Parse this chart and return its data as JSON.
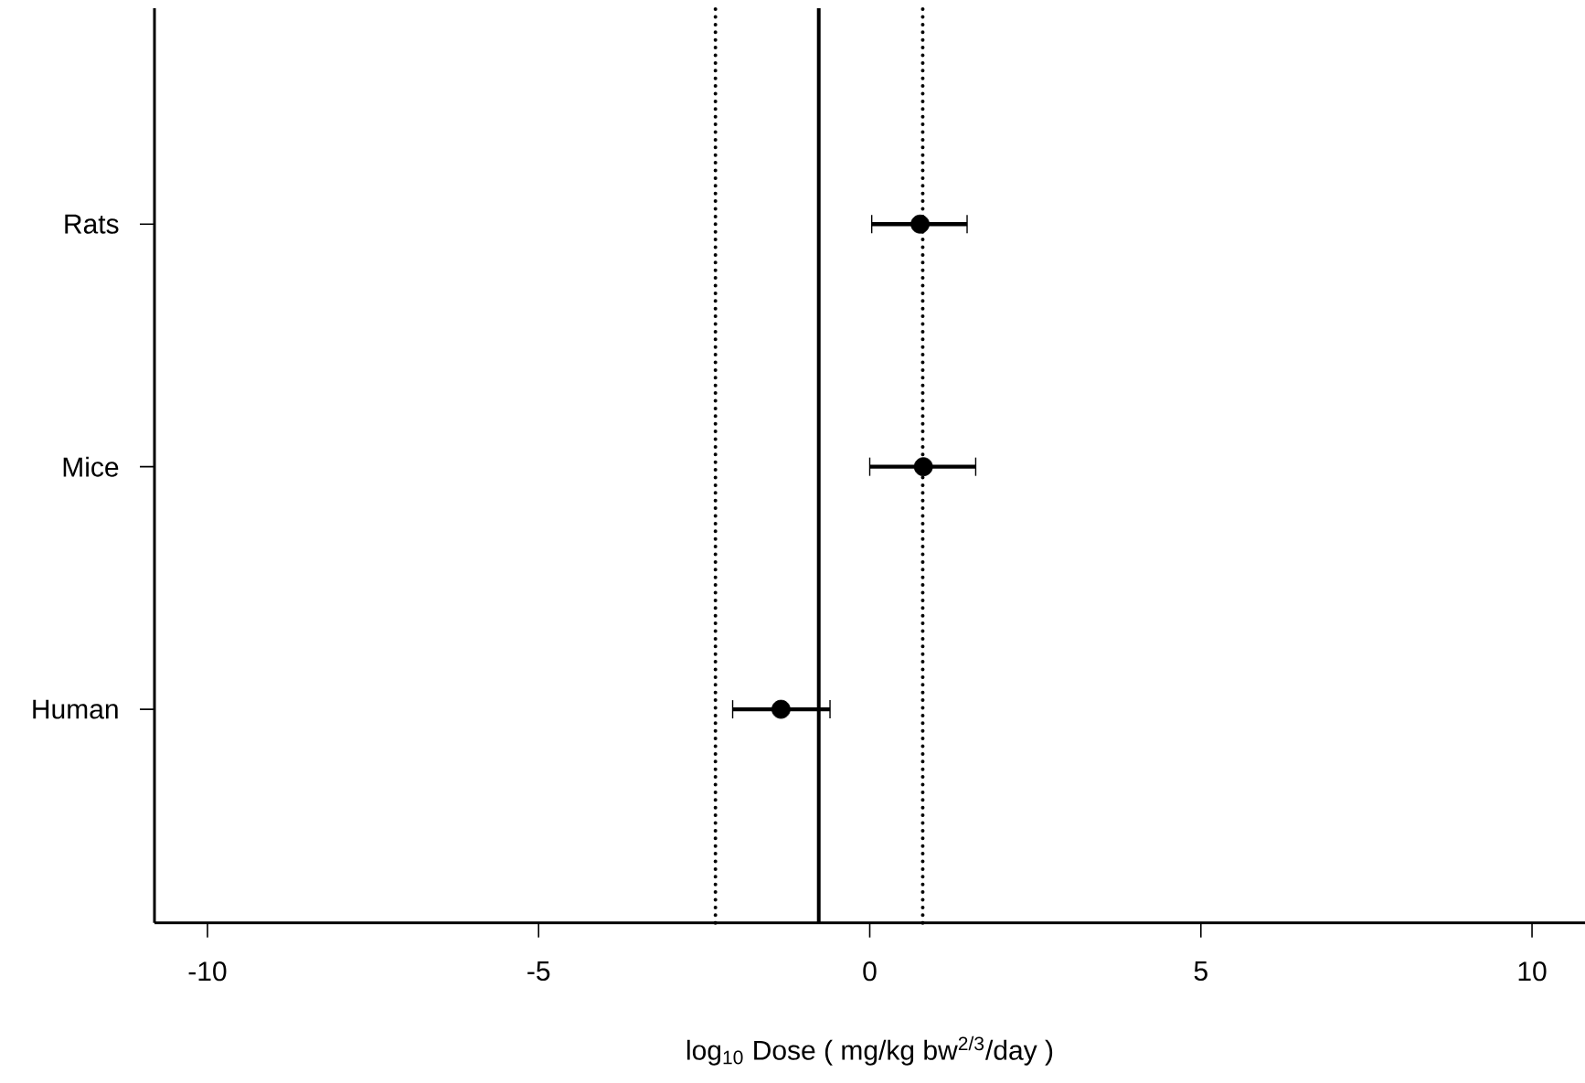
{
  "chart_data": {
    "type": "scatter",
    "orientation": "horizontal",
    "xlabel": "log$_{10}$ Dose ( mg/kg bw$^{2/3}$/day )",
    "categories": [
      "Rats",
      "Mice",
      "Human"
    ],
    "color": "#000000",
    "values": [
      0.76,
      0.81,
      -1.34
    ],
    "errors": [
      [
        0.03,
        1.47
      ],
      [
        0.0,
        1.6
      ],
      [
        -2.07,
        -0.6
      ]
    ],
    "marker": "circle",
    "xlim": [
      -10.8,
      10.8
    ],
    "xticks": [
      -10,
      -5,
      0,
      5,
      10
    ],
    "ref_lines": [
      {
        "axis": "x",
        "value": -0.77,
        "line_style": "solid",
        "color": "#000000"
      },
      {
        "axis": "x",
        "value": -2.33,
        "line_style": "dotted",
        "color": "#000000"
      },
      {
        "axis": "x",
        "value": 0.8,
        "line_style": "dotted",
        "color": "#000000"
      }
    ]
  }
}
